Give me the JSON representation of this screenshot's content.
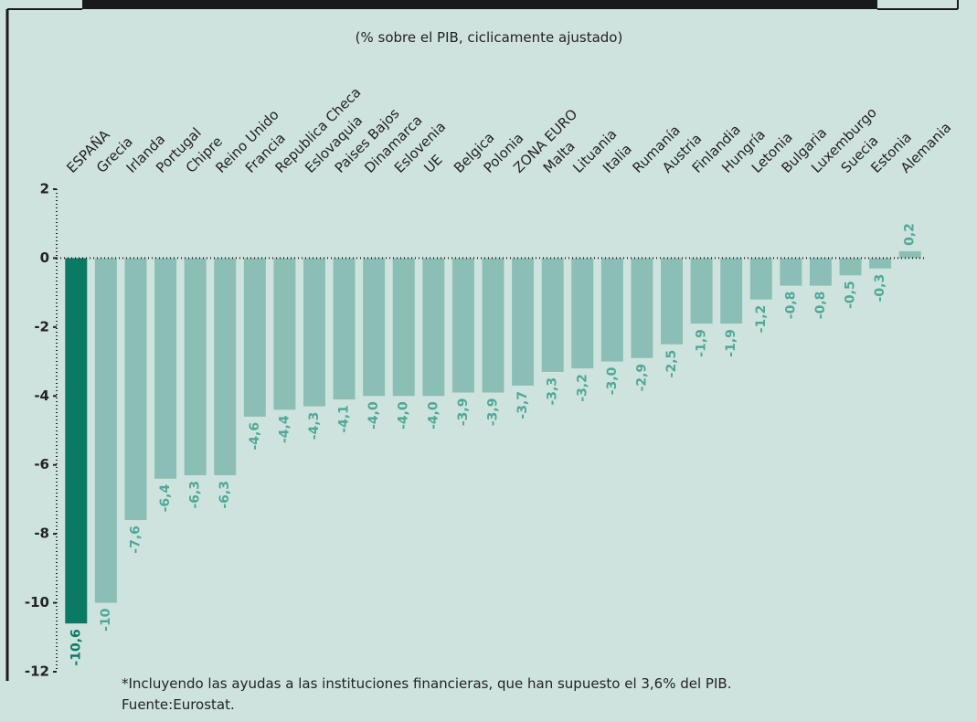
{
  "chart_data": {
    "type": "bar",
    "subtitle": "(% sobre el PIB, ciclicamente ajustado)",
    "categories": [
      "ESPAÑA",
      "Grecia",
      "Irlanda",
      "Portugal",
      "Chipre",
      "Reino Unido",
      "Francia",
      "Republica Checa",
      "Eslovaquia",
      "Paises Bajos",
      "Dinamarca",
      "Eslovenia",
      "UE",
      "Belgica",
      "Polonia",
      "ZONA EURO",
      "Malta",
      "Lituania",
      "Italia",
      "Rumanía",
      "Austria",
      "Finlandia",
      "Hungría",
      "Letonia",
      "Bulgaria",
      "Luxemburgo",
      "Suecia",
      "Estonia",
      "Alemania"
    ],
    "values": [
      -10.6,
      -10,
      -7.6,
      -6.4,
      -6.3,
      -6.3,
      -4.6,
      -4.4,
      -4.3,
      -4.1,
      -4.0,
      -4.0,
      -4.0,
      -3.9,
      -3.9,
      -3.7,
      -3.3,
      -3.2,
      -3.0,
      -2.9,
      -2.5,
      -1.9,
      -1.9,
      -1.2,
      -0.8,
      -0.8,
      -0.5,
      -0.3,
      0.2
    ],
    "value_labels": [
      "-10,6",
      "-10",
      "-7,6",
      "-6,4",
      "-6,3",
      "-6,3",
      "-4,6",
      "-4,4",
      "-4,3",
      "-4,1",
      "-4,0",
      "-4,0",
      "-4,0",
      "-3,9",
      "-3,9",
      "-3,7",
      "-3,3",
      "-3,2",
      "-3,0",
      "-2,9",
      "-2,5",
      "-1,9",
      "-1,9",
      "-1,2",
      "-0,8",
      "-0,8",
      "-0,5",
      "-0,3",
      "0,2"
    ],
    "colors": [
      "#0b7a64",
      "#8bbfb6",
      "#8bbfb6",
      "#8bbfb6",
      "#8bbfb6",
      "#8bbfb6",
      "#8bbfb6",
      "#8bbfb6",
      "#8bbfb6",
      "#8bbfb6",
      "#8bbfb6",
      "#8bbfb6",
      "#8bbfb6",
      "#8bbfb6",
      "#8bbfb6",
      "#8bbfb6",
      "#8bbfb6",
      "#8bbfb6",
      "#8bbfb6",
      "#8bbfb6",
      "#8bbfb6",
      "#8bbfb6",
      "#8bbfb6",
      "#8bbfb6",
      "#8bbfb6",
      "#8bbfb6",
      "#8bbfb6",
      "#8bbfb6",
      "#8bbfb6"
    ],
    "label_colors": [
      "#0b7a64",
      "#4fa898",
      "#4fa898",
      "#4fa898",
      "#4fa898",
      "#4fa898",
      "#4fa898",
      "#4fa898",
      "#4fa898",
      "#4fa898",
      "#4fa898",
      "#4fa898",
      "#4fa898",
      "#4fa898",
      "#4fa898",
      "#4fa898",
      "#4fa898",
      "#4fa898",
      "#4fa898",
      "#4fa898",
      "#4fa898",
      "#4fa898",
      "#4fa898",
      "#4fa898",
      "#4fa898",
      "#4fa898",
      "#4fa898",
      "#4fa898",
      "#4fa898"
    ],
    "ylim": [
      -12,
      2
    ],
    "yticks": [
      2,
      0,
      -2,
      -4,
      -6,
      -8,
      -10,
      -12
    ],
    "footnote": [
      "*Incluyendo las ayudas a las instituciones financieras, que han supuesto el 3,6% del PIB.",
      "Fuente:Eurostat."
    ]
  }
}
